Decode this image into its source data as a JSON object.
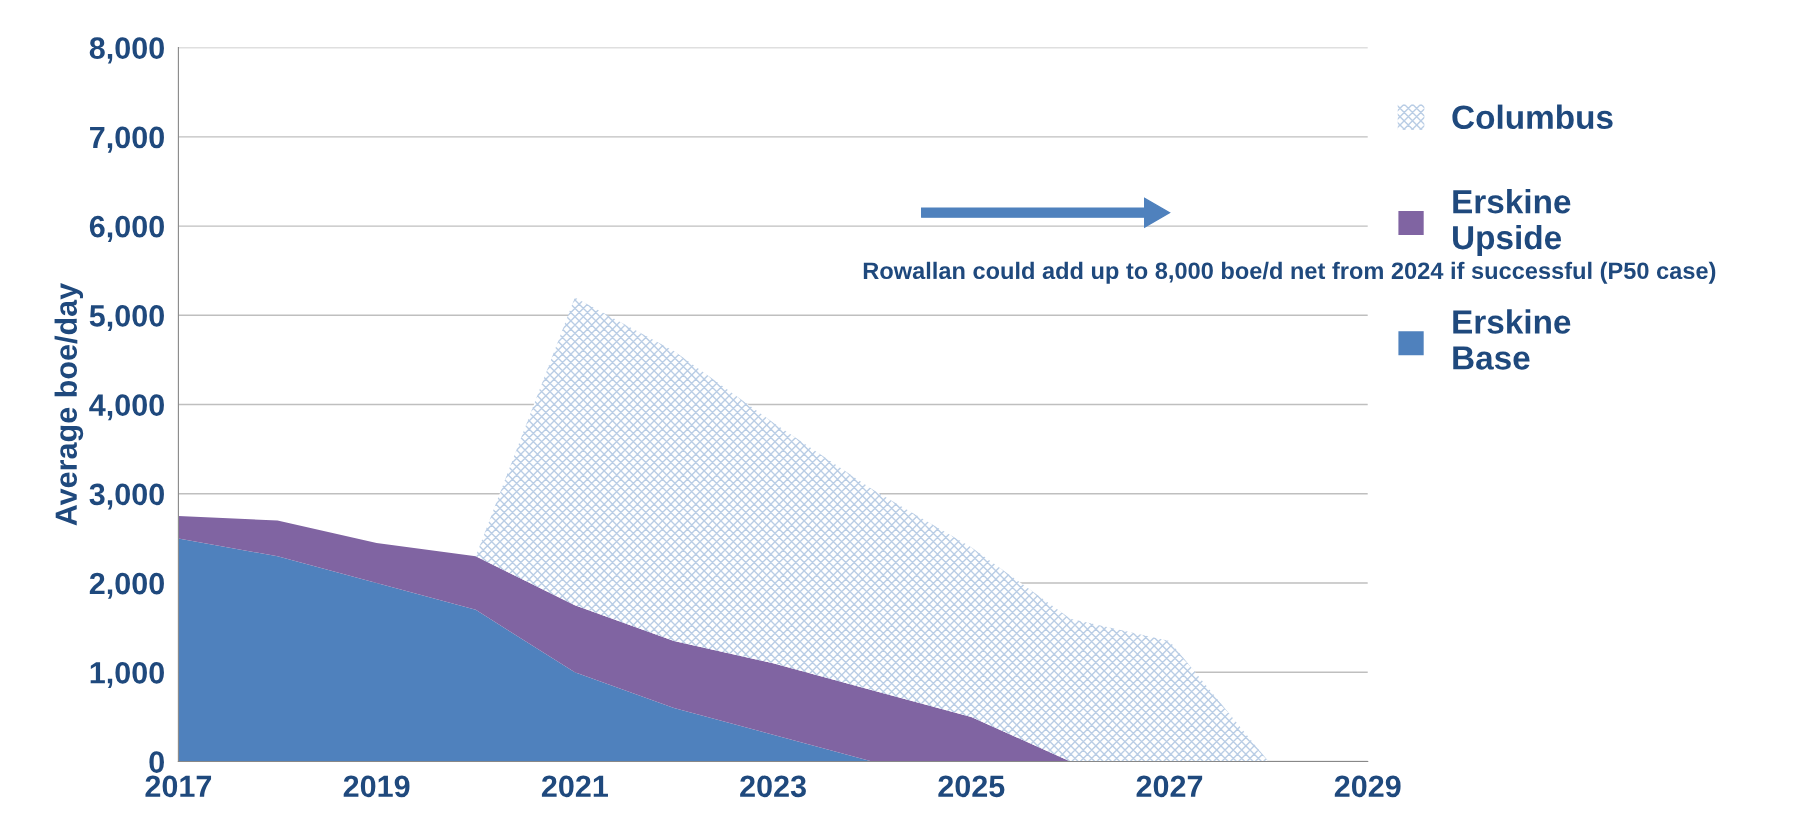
{
  "chart_data": {
    "type": "area",
    "stacked": true,
    "ylabel": "Average boe/day",
    "x": [
      2017,
      2018,
      2019,
      2020,
      2021,
      2022,
      2023,
      2024,
      2025,
      2026,
      2027,
      2028
    ],
    "series": [
      {
        "name": "Erskine Base",
        "color": "#4f81bd",
        "values": [
          2500,
          2300,
          2000,
          1700,
          1000,
          600,
          300,
          0,
          0,
          0,
          0,
          0
        ]
      },
      {
        "name": "Erskine Upside",
        "color": "#8064a2",
        "values": [
          250,
          400,
          450,
          600,
          750,
          750,
          800,
          800,
          500,
          0,
          0,
          0
        ]
      },
      {
        "name": "Columbus",
        "color": "#b9cde5",
        "values": [
          null,
          null,
          null,
          0,
          3450,
          3250,
          2700,
          2250,
          1900,
          1600,
          1350,
          0
        ]
      }
    ],
    "xlim": [
      2017,
      2029
    ],
    "xticks": [
      2017,
      2019,
      2021,
      2023,
      2025,
      2027,
      2029
    ],
    "ylim": [
      0,
      8000
    ],
    "yticks": [
      {
        "value": 0,
        "label": "0"
      },
      {
        "value": 1000,
        "label": "1,000"
      },
      {
        "value": 2000,
        "label": "2,000"
      },
      {
        "value": 3000,
        "label": "3,000"
      },
      {
        "value": 4000,
        "label": "4,000"
      },
      {
        "value": 5000,
        "label": "5,000"
      },
      {
        "value": 6000,
        "label": "6,000"
      },
      {
        "value": 7000,
        "label": "7,000"
      },
      {
        "value": 8000,
        "label": "8,000"
      }
    ],
    "grid": "y",
    "legend": "right",
    "annotations": [
      "Rowallan could add up to 8,000 boe/d net from 2024 if successful (P50 case)"
    ]
  }
}
